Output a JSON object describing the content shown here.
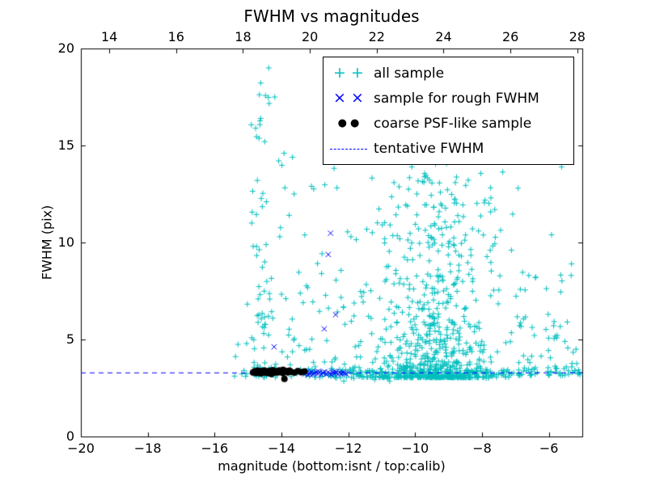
{
  "chart_data": {
    "type": "scatter",
    "title": "FWHM vs magnitudes",
    "xlabel": "magnitude (bottom:isnt / top:calib)",
    "ylabel": "FWHM (pix)",
    "xlim": [
      -20,
      -5
    ],
    "ylim": [
      0,
      20
    ],
    "grid": false,
    "legend_position": "upper right",
    "x_ticks_bottom": {
      "values": [
        -20,
        -18,
        -16,
        -14,
        -12,
        -10,
        -8,
        -6
      ],
      "labels": [
        "−20",
        "−18",
        "−16",
        "−14",
        "−12",
        "−10",
        "−8",
        "−6"
      ]
    },
    "x_ticks_top": {
      "offset_from_bottom": 33.15,
      "values": [
        14,
        16,
        18,
        20,
        22,
        24,
        26,
        28
      ],
      "labels": [
        "14",
        "16",
        "18",
        "20",
        "22",
        "24",
        "26",
        "28"
      ]
    },
    "y_ticks": {
      "values": [
        0,
        5,
        10,
        15,
        20
      ],
      "labels": [
        "0",
        "5",
        "10",
        "15",
        "20"
      ]
    },
    "tentative_fwhm": 3.3,
    "colors": {
      "all_sample": "#00bfbf",
      "rough_sample": "#0000ff",
      "coarse_sample": "#000000",
      "tentative_line": "#0000ff",
      "frame": "#000000",
      "background": "#ffffff"
    },
    "legend": [
      {
        "label": "all sample",
        "marker": "plus",
        "color": "#00bfbf"
      },
      {
        "label": "sample for rough FWHM",
        "marker": "x",
        "color": "#0000ff"
      },
      {
        "label": "coarse PSF-like sample",
        "marker": "dot",
        "color": "#000000"
      },
      {
        "label": "tentative FWHM",
        "marker": "dashed-line",
        "color": "#0000ff"
      }
    ],
    "series": {
      "seed": 7,
      "all_sample_clusters": [
        {
          "name": "left-column",
          "count": 80,
          "x": {
            "dist": "normal",
            "mean": -14.55,
            "sd": 0.22,
            "min": -15.05,
            "max": -13.95
          },
          "y": {
            "dist": "power",
            "min": 3.05,
            "max": 19.2,
            "exp": 2.8
          }
        },
        {
          "name": "left-sparse",
          "count": 6,
          "x": {
            "dist": "uniform",
            "min": -15.45,
            "max": -15.0
          },
          "y": {
            "dist": "power",
            "min": 3.1,
            "max": 4.9,
            "exp": 2.0
          }
        },
        {
          "name": "mid-sparse",
          "count": 95,
          "x": {
            "dist": "uniform",
            "min": -14.0,
            "max": -10.9
          },
          "y": {
            "dist": "power",
            "min": 3.05,
            "max": 14.8,
            "exp": 3.0
          }
        },
        {
          "name": "main-blob",
          "count": 680,
          "x": {
            "dist": "normal",
            "mean": -9.35,
            "sd": 0.85,
            "min": -11.6,
            "max": -7.15
          },
          "y": {
            "dist": "power",
            "min": 3.05,
            "max": 13.8,
            "exp": 3.4
          }
        },
        {
          "name": "high-sparse",
          "count": 75,
          "x": {
            "dist": "normal",
            "mean": -8.9,
            "sd": 1.35,
            "min": -12.2,
            "max": -5.4
          },
          "y": {
            "dist": "uniform",
            "min": 8.0,
            "max": 19.5
          }
        },
        {
          "name": "bottom-band",
          "count": 200,
          "x": {
            "dist": "uniform",
            "min": -13.25,
            "max": -5.05
          },
          "y": {
            "dist": "normal",
            "mean": 3.3,
            "sd": 0.16,
            "min": 2.75,
            "max": 3.95
          }
        },
        {
          "name": "right-lower",
          "count": 55,
          "x": {
            "dist": "uniform",
            "min": -7.15,
            "max": -5.05
          },
          "y": {
            "dist": "power",
            "min": 3.15,
            "max": 8.5,
            "exp": 2.4
          }
        }
      ],
      "all_sample_explicit": [
        [
          -14.38,
          19.0
        ],
        [
          -14.2,
          17.5
        ],
        [
          -14.62,
          16.4
        ],
        [
          -14.5,
          15.2
        ],
        [
          -13.92,
          14.6
        ],
        [
          -14.72,
          13.2
        ],
        [
          -14.45,
          12.1
        ],
        [
          -13.62,
          12.5
        ],
        [
          -13.77,
          11.4
        ],
        [
          -14.05,
          10.3
        ],
        [
          -14.5,
          9.0
        ],
        [
          -14.3,
          8.15
        ],
        [
          -15.12,
          3.4
        ],
        [
          -15.3,
          4.75
        ],
        [
          -12.02,
          10.55
        ],
        [
          -11.92,
          10.3
        ],
        [
          -9.02,
          19.3
        ],
        [
          -8.2,
          19.0
        ],
        [
          -7.32,
          18.0
        ],
        [
          -9.3,
          17.6
        ],
        [
          -8.52,
          16.8
        ],
        [
          -6.3,
          16.2
        ],
        [
          -9.62,
          15.4
        ],
        [
          -8.02,
          14.9
        ],
        [
          -5.62,
          13.9
        ],
        [
          -6.92,
          12.8
        ],
        [
          -5.32,
          8.9
        ],
        [
          -5.52,
          4.9
        ],
        [
          -5.22,
          3.4
        ],
        [
          -6.02,
          6.3
        ],
        [
          -5.92,
          10.4
        ],
        [
          -7.12,
          9.6
        ],
        [
          -10.4,
          16.9
        ],
        [
          -10.1,
          13.9
        ],
        [
          -7.6,
          19.4
        ],
        [
          -6.6,
          8.3
        ],
        [
          -5.45,
          5.9
        ],
        [
          -8.85,
          9.9
        ],
        [
          -12.45,
          14.6
        ],
        [
          -13.1,
          12.9
        ],
        [
          -12.8,
          8.4
        ],
        [
          -13.35,
          6.9
        ],
        [
          -11.3,
          5.3
        ],
        [
          -11.75,
          4.1
        ],
        [
          -10.75,
          10.9
        ],
        [
          -10.9,
          8.0
        ]
      ],
      "rough_points": [
        [
          -14.22,
          4.62
        ],
        [
          -13.3,
          3.22
        ],
        [
          -13.26,
          3.3
        ],
        [
          -13.21,
          3.18
        ],
        [
          -13.16,
          3.28
        ],
        [
          -13.11,
          3.34
        ],
        [
          -13.06,
          3.2
        ],
        [
          -13.01,
          3.27
        ],
        [
          -12.96,
          3.32
        ],
        [
          -12.91,
          3.24
        ],
        [
          -12.86,
          3.3
        ],
        [
          -12.81,
          3.19
        ],
        [
          -12.76,
          3.28
        ],
        [
          -12.72,
          5.55
        ],
        [
          -12.71,
          3.34
        ],
        [
          -12.66,
          3.22
        ],
        [
          -12.61,
          3.3
        ],
        [
          -12.6,
          9.38
        ],
        [
          -12.56,
          3.26
        ],
        [
          -12.53,
          10.48
        ],
        [
          -12.51,
          3.18
        ],
        [
          -12.46,
          3.3
        ],
        [
          -12.41,
          3.25
        ],
        [
          -12.38,
          6.28
        ],
        [
          -12.36,
          3.32
        ],
        [
          -12.31,
          3.2
        ],
        [
          -12.26,
          3.28
        ],
        [
          -12.21,
          3.24
        ],
        [
          -12.16,
          3.3
        ],
        [
          -12.11,
          3.26
        ],
        [
          -12.06,
          3.22
        ],
        [
          -12.41,
          3.35
        ],
        [
          -12.9,
          3.36
        ],
        [
          -13.15,
          3.22
        ]
      ],
      "coarse_points": [
        [
          -14.85,
          3.3
        ],
        [
          -14.8,
          3.36
        ],
        [
          -14.76,
          3.27
        ],
        [
          -14.71,
          3.4
        ],
        [
          -14.66,
          3.32
        ],
        [
          -14.61,
          3.38
        ],
        [
          -14.56,
          3.29
        ],
        [
          -14.51,
          3.41
        ],
        [
          -14.46,
          3.34
        ],
        [
          -14.41,
          3.27
        ],
        [
          -14.36,
          3.39
        ],
        [
          -14.31,
          3.31
        ],
        [
          -14.26,
          3.42
        ],
        [
          -14.21,
          3.29
        ],
        [
          -14.16,
          3.36
        ],
        [
          -14.11,
          3.3
        ],
        [
          -14.06,
          3.41
        ],
        [
          -14.01,
          3.33
        ],
        [
          -13.96,
          3.27
        ],
        [
          -13.91,
          2.97
        ],
        [
          -13.86,
          3.37
        ],
        [
          -13.81,
          3.3
        ],
        [
          -13.76,
          3.4
        ],
        [
          -13.71,
          3.33
        ],
        [
          -13.61,
          3.29
        ],
        [
          -13.51,
          3.38
        ],
        [
          -13.41,
          3.31
        ],
        [
          -13.31,
          3.35
        ],
        [
          -14.62,
          3.25
        ],
        [
          -14.3,
          3.22
        ],
        [
          -13.95,
          3.44
        ],
        [
          -14.5,
          3.3
        ]
      ]
    }
  }
}
